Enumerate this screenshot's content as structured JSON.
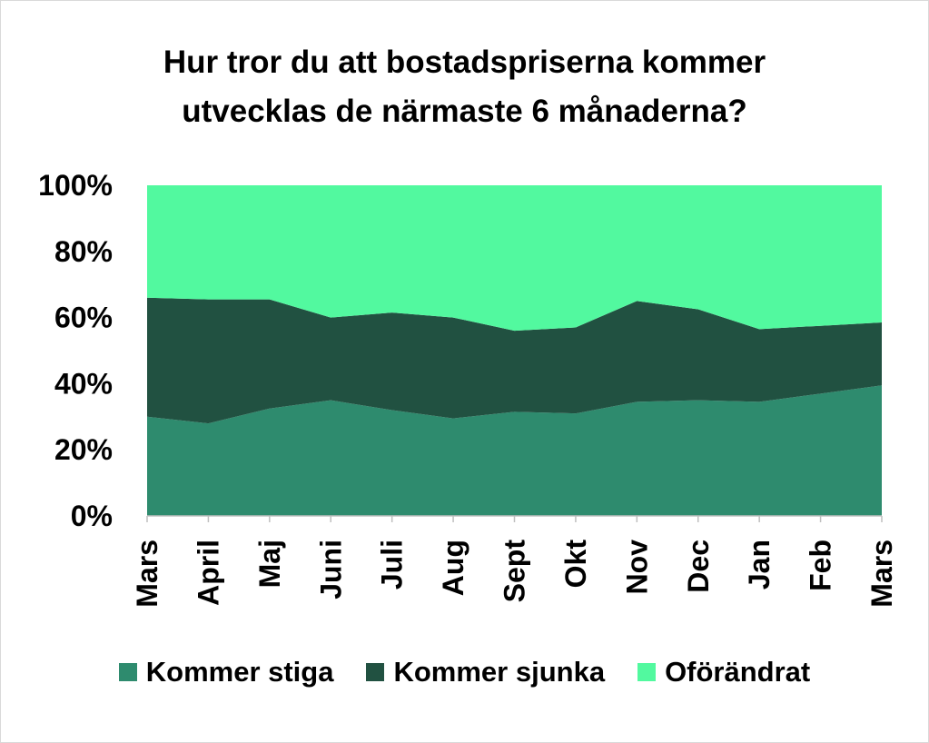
{
  "chart_data": {
    "type": "area",
    "stacked": true,
    "percent": true,
    "title_lines": [
      "Hur tror du att bostadspriserna kommer",
      "utvecklas de närmaste 6 månaderna?"
    ],
    "categories": [
      "Mars",
      "April",
      "Maj",
      "Juni",
      "Juli",
      "Aug",
      "Sept",
      "Okt",
      "Nov",
      "Dec",
      "Jan",
      "Feb",
      "Mars"
    ],
    "series": [
      {
        "name": "Kommer stiga",
        "color": "#2e8b6e",
        "values": [
          30,
          28,
          32.5,
          35,
          32,
          29.5,
          31.5,
          31,
          34.5,
          35,
          34.5,
          37,
          39.5
        ]
      },
      {
        "name": "Kommer sjunka",
        "color": "#215141",
        "values": [
          36,
          37.5,
          33,
          25,
          29.5,
          30.5,
          24.5,
          26,
          30.5,
          27.5,
          22,
          20.5,
          19
        ]
      },
      {
        "name": "Oförändrat",
        "color": "#52f99f",
        "values": [
          34,
          34.5,
          34.5,
          40,
          38.5,
          40,
          44,
          43,
          35,
          37.5,
          43.5,
          42.5,
          41.5
        ]
      }
    ],
    "y_ticks": [
      "0%",
      "20%",
      "40%",
      "60%",
      "80%",
      "100%"
    ],
    "ylim": [
      0,
      100
    ],
    "grid": false,
    "legend_position": "bottom"
  }
}
